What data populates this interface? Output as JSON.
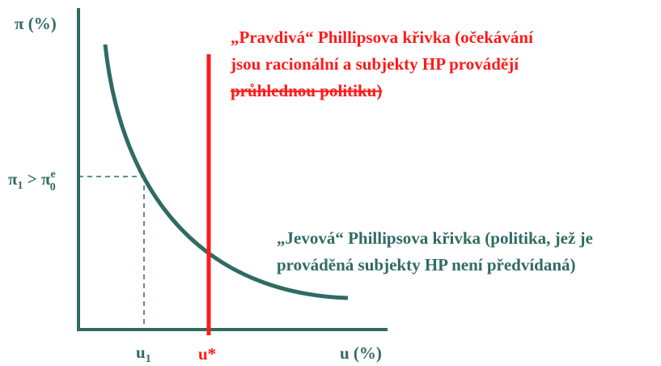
{
  "y_axis_label": "π (%)",
  "x_axis_label": "u (%)",
  "u1_label": {
    "base": "u",
    "sub": "1"
  },
  "ustar_label": "u*",
  "pi_label": {
    "base1": "π",
    "sub1": "1",
    "relation": " > π",
    "sup2": "e",
    "sub2": "0"
  },
  "true_curve_text": [
    "„Pravdivá“ Phillipsova křivka (očekávání",
    "jsou racionální a subjekty HP provádějí",
    "průhlednou politiku)"
  ],
  "apparent_curve_text": [
    "„Jevová“ Phillipsova křivka (politika, jež je",
    "prováděná subjekty HP není předvídaná)"
  ]
}
